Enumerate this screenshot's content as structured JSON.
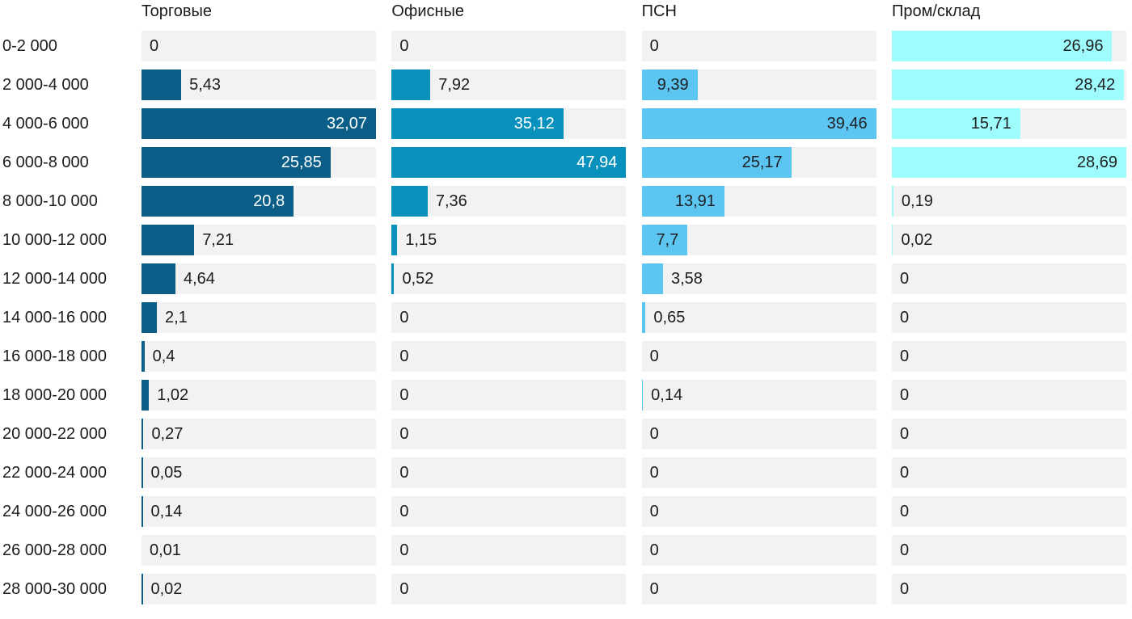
{
  "chart_data": {
    "type": "bar",
    "orientation": "horizontal",
    "layout": "small-multiples (one bar column per series, each scaled to its own max)",
    "grid": false,
    "track_color": "#f2f2f2",
    "text_color": "#1c1c1e",
    "value_decimal_separator": ",",
    "categories": [
      "0-2 000",
      "2 000-4 000",
      "4 000-6 000",
      "6 000-8 000",
      "8 000-10 000",
      "10 000-12 000",
      "12 000-14 000",
      "14 000-16 000",
      "16 000-18 000",
      "18 000-20 000",
      "20 000-22 000",
      "22 000-24 000",
      "24 000-26 000",
      "26 000-28 000",
      "28 000-30 000"
    ],
    "series": [
      {
        "name": "Торговые",
        "color": "#0b5e87",
        "inside_label_color": "#ffffff",
        "values": [
          0,
          5.43,
          32.07,
          25.85,
          20.8,
          7.21,
          4.64,
          2.1,
          0.4,
          1.02,
          0.27,
          0.05,
          0.14,
          0.01,
          0.02
        ]
      },
      {
        "name": "Офисные",
        "color": "#0891bc",
        "inside_label_color": "#ffffff",
        "values": [
          0,
          7.92,
          35.12,
          47.94,
          7.36,
          1.15,
          0.52,
          0,
          0,
          0,
          0,
          0,
          0,
          0,
          0
        ]
      },
      {
        "name": "ПСН",
        "color": "#5cc5f2",
        "inside_label_color": "#1f2021",
        "values": [
          0,
          9.39,
          39.46,
          25.17,
          13.91,
          7.7,
          3.58,
          0.65,
          0,
          0.14,
          0,
          0,
          0,
          0,
          0
        ]
      },
      {
        "name": "Пром/склад",
        "color": "#9efcfc",
        "inside_label_color": "#1f2021",
        "values": [
          26.96,
          28.42,
          15.71,
          28.69,
          0.19,
          0.02,
          0,
          0,
          0,
          0,
          0,
          0,
          0,
          0,
          0
        ]
      }
    ]
  }
}
